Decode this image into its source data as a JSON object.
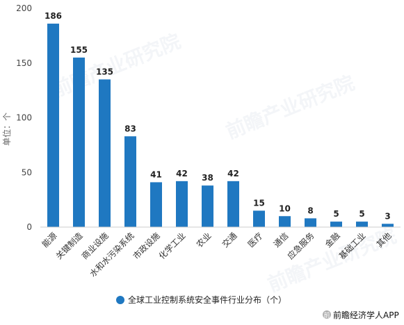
{
  "chart_data": {
    "type": "bar",
    "title": "",
    "xlabel": "",
    "ylabel": "单位：个",
    "ylim": [
      0,
      200
    ],
    "yticks": [
      0,
      50,
      100,
      150,
      200
    ],
    "grid": false,
    "legend_position": "bottom",
    "bar_color": "#1f78c1",
    "categories": [
      "能源",
      "关键制造",
      "商业设施",
      "水和水污染系统",
      "市政设施",
      "化学工业",
      "农业",
      "交通",
      "医疗",
      "通信",
      "应急服务",
      "金融",
      "基础工业",
      "其他"
    ],
    "series": [
      {
        "name": "全球工业控制系统安全事件行业分布（个）",
        "values": [
          186,
          155,
          135,
          83,
          41,
          42,
          38,
          42,
          15,
          10,
          8,
          5,
          5,
          3
        ]
      }
    ]
  },
  "source": "前瞻经济学人APP",
  "watermark": "前瞻产业研究院"
}
